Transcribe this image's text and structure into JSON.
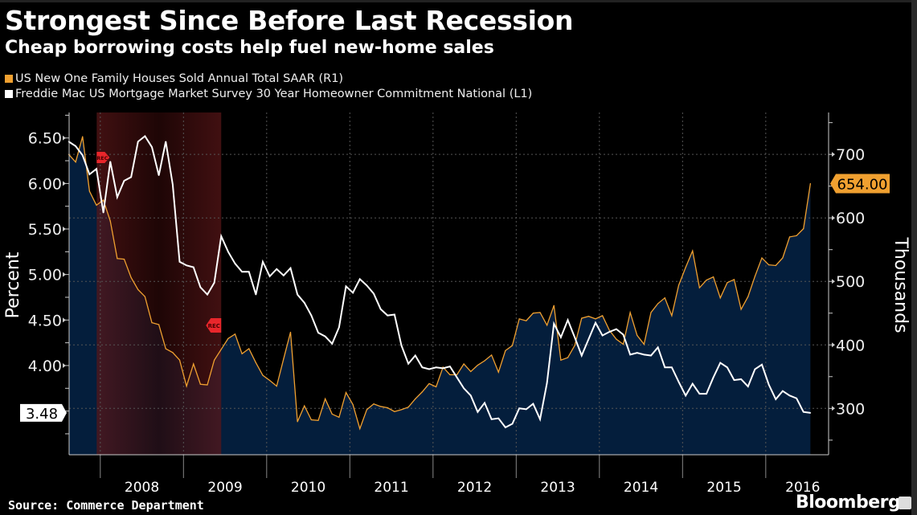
{
  "chart_data": {
    "type": "line",
    "title": "Strongest Since Before Last Recession",
    "subtitle": "Cheap borrowing costs help fuel new-home sales",
    "x_start": "2007-08",
    "x_end": "2016-07",
    "x_frequency": "monthly",
    "x_tick_labels": [
      "2008",
      "2009",
      "2010",
      "2011",
      "2012",
      "2013",
      "2014",
      "2015",
      "2016"
    ],
    "y_left": {
      "label": "Percent",
      "range": [
        3.02,
        6.78
      ],
      "ticks": [
        "6.50",
        "6.00",
        "5.50",
        "5.00",
        "4.50",
        "4.00"
      ]
    },
    "y_right": {
      "label": "Thousands",
      "range": [
        227,
        766
      ],
      "ticks": [
        "700",
        "600",
        "500",
        "400",
        "300"
      ]
    },
    "grid": true,
    "legend_position": "top-left",
    "recession": {
      "start": "2007-12",
      "end": "2009-06",
      "marker_label": "REC",
      "color": "#8b1a1a"
    },
    "series": [
      {
        "name": "US New One Family Houses Sold Annual Total SAAR  (R1)",
        "axis": "right",
        "color": "#f0a030",
        "fill": "#041e3c",
        "last_value_label": "654.00",
        "values": [
          700,
          688,
          728,
          642,
          620,
          628,
          595,
          536,
          535,
          506,
          487,
          476,
          435,
          432,
          394,
          388,
          376,
          335,
          370,
          338,
          337,
          376,
          393,
          410,
          417,
          386,
          394,
          372,
          352,
          344,
          335,
          378,
          420,
          279,
          304,
          282,
          281,
          315,
          291,
          286,
          325,
          306,
          268,
          298,
          307,
          303,
          301,
          295,
          298,
          302,
          315,
          326,
          339,
          334,
          365,
          353,
          353,
          370,
          358,
          368,
          375,
          384,
          357,
          391,
          399,
          441,
          438,
          450,
          451,
          431,
          462,
          376,
          380,
          399,
          442,
          445,
          441,
          446,
          423,
          409,
          401,
          451,
          415,
          401,
          451,
          465,
          474,
          446,
          494,
          522,
          548,
          490,
          502,
          507,
          474,
          498,
          503,
          456,
          476,
          508,
          537,
          526,
          525,
          537,
          570,
          572,
          583,
          654
        ]
      },
      {
        "name": "Freddie Mac US Mortgage Market Survey 30 Year Homeowner Commitment National  (L1)",
        "axis": "left",
        "color": "#ffffff",
        "last_value_label": "3.48",
        "values": [
          6.46,
          6.41,
          6.31,
          6.1,
          6.16,
          5.68,
          6.24,
          5.85,
          6.03,
          6.07,
          6.46,
          6.52,
          6.4,
          6.09,
          6.46,
          5.99,
          5.14,
          5.1,
          5.08,
          4.86,
          4.78,
          4.91,
          5.42,
          5.25,
          5.12,
          5.03,
          5.03,
          4.78,
          5.14,
          4.98,
          5.06,
          4.99,
          5.07,
          4.78,
          4.69,
          4.55,
          4.36,
          4.32,
          4.24,
          4.42,
          4.87,
          4.8,
          4.95,
          4.88,
          4.79,
          4.62,
          4.55,
          4.56,
          4.22,
          4.02,
          4.11,
          3.98,
          3.96,
          3.98,
          3.97,
          3.99,
          3.87,
          3.75,
          3.67,
          3.49,
          3.59,
          3.41,
          3.42,
          3.32,
          3.36,
          3.53,
          3.52,
          3.58,
          3.41,
          3.81,
          4.46,
          4.31,
          4.5,
          4.31,
          4.11,
          4.29,
          4.47,
          4.33,
          4.37,
          4.4,
          4.34,
          4.12,
          4.14,
          4.12,
          4.11,
          4.2,
          3.98,
          3.98,
          3.82,
          3.67,
          3.8,
          3.69,
          3.69,
          3.87,
          4.03,
          3.98,
          3.84,
          3.85,
          3.77,
          3.96,
          4.01,
          3.79,
          3.63,
          3.72,
          3.67,
          3.64,
          3.49,
          3.48
        ]
      }
    ]
  },
  "source": "Source: Commerce Department",
  "brand": "Bloomberg"
}
